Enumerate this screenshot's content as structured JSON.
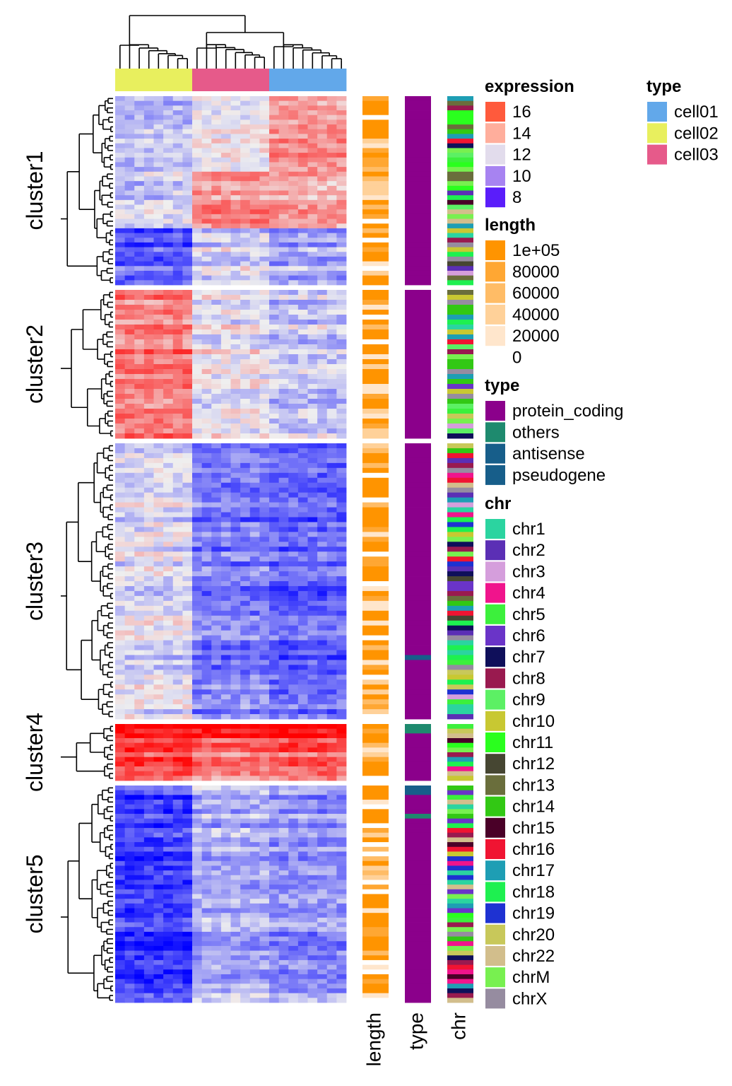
{
  "chart_data": {
    "type": "heatmap",
    "title": "",
    "columns": {
      "groups": [
        {
          "name": "cell02",
          "count": 8
        },
        {
          "name": "cell03",
          "count": 8
        },
        {
          "name": "cell01",
          "count": 8
        }
      ]
    },
    "row_clusters": [
      {
        "name": "cluster1",
        "rows": 40,
        "profile": [
          -0.8,
          0.2,
          0.4
        ],
        "note": "upper block high in cell01/cell03"
      },
      {
        "name": "cluster2",
        "rows": 30,
        "profile": [
          1.0,
          0.0,
          -0.3
        ]
      },
      {
        "name": "cluster3",
        "rows": 56,
        "profile": [
          -0.2,
          -1.0,
          -1.2
        ]
      },
      {
        "name": "cluster4",
        "rows": 12,
        "profile": [
          1.4,
          1.0,
          1.2
        ]
      },
      {
        "name": "cluster5",
        "rows": 46,
        "profile": [
          -1.5,
          -0.6,
          -0.8
        ]
      }
    ],
    "row_annotations": [
      "length",
      "type",
      "chr"
    ],
    "legends": {
      "expression": {
        "title": "expression",
        "scale": {
          "min": 8,
          "mid": 12,
          "max": 16
        },
        "entries": [
          {
            "label": "16",
            "color": "#ff5a3c"
          },
          {
            "label": "14",
            "color": "#ffae9c"
          },
          {
            "label": "12",
            "color": "#e2dcec"
          },
          {
            "label": "10",
            "color": "#a783f1"
          },
          {
            "label": "8",
            "color": "#5a1dfa"
          }
        ],
        "heat_low": "#0000ff",
        "heat_mid": "#efefef",
        "heat_high": "#ff0000"
      },
      "cell_type": {
        "title": "type",
        "entries": [
          {
            "label": "cell01",
            "color": "#62a8ea"
          },
          {
            "label": "cell02",
            "color": "#e8ef5e"
          },
          {
            "label": "cell03",
            "color": "#e65a8a"
          }
        ]
      },
      "length": {
        "title": "length",
        "entries": [
          {
            "label": "1e+05",
            "value": 100000,
            "color": "#ff9400"
          },
          {
            "label": "80000",
            "value": 80000,
            "color": "#ffa733"
          },
          {
            "label": "60000",
            "value": 60000,
            "color": "#ffbc66"
          },
          {
            "label": "40000",
            "value": 40000,
            "color": "#ffd199"
          },
          {
            "label": "20000",
            "value": 20000,
            "color": "#ffe6cc"
          },
          {
            "label": "0",
            "value": 0,
            "color": "#ffffff"
          }
        ]
      },
      "gene_type": {
        "title": "type",
        "entries": [
          {
            "label": "protein_coding",
            "color": "#8b008b"
          },
          {
            "label": "others",
            "color": "#1e8a6e"
          },
          {
            "label": "antisense",
            "color": "#175e8a"
          },
          {
            "label": "pseudogene",
            "color": "#175e8a"
          }
        ]
      },
      "chr": {
        "title": "chr",
        "entries": [
          {
            "label": "chr1",
            "color": "#2bd4a0"
          },
          {
            "label": "chr2",
            "color": "#5b2fb5"
          },
          {
            "label": "chr3",
            "color": "#d59edc"
          },
          {
            "label": "chr4",
            "color": "#f0148c"
          },
          {
            "label": "chr5",
            "color": "#3cf03c"
          },
          {
            "label": "chr6",
            "color": "#6a34c8"
          },
          {
            "label": "chr7",
            "color": "#0f0f5a"
          },
          {
            "label": "chr8",
            "color": "#991a4f"
          },
          {
            "label": "chr9",
            "color": "#5cf064"
          },
          {
            "label": "chr10",
            "color": "#c8c832"
          },
          {
            "label": "chr11",
            "color": "#2aff1e"
          },
          {
            "label": "chr12",
            "color": "#464632"
          },
          {
            "label": "chr13",
            "color": "#6a6e3c"
          },
          {
            "label": "chr14",
            "color": "#32c814"
          },
          {
            "label": "chr15",
            "color": "#4a0028"
          },
          {
            "label": "chr16",
            "color": "#f01432"
          },
          {
            "label": "chr17",
            "color": "#1e9eb4"
          },
          {
            "label": "chr18",
            "color": "#1ef050"
          },
          {
            "label": "chr19",
            "color": "#1e32d2"
          },
          {
            "label": "chr20",
            "color": "#c8c85a"
          },
          {
            "label": "chr22",
            "color": "#d2be8c"
          },
          {
            "label": "chrM",
            "color": "#78f050"
          },
          {
            "label": "chrX",
            "color": "#968ca0"
          }
        ]
      }
    }
  }
}
